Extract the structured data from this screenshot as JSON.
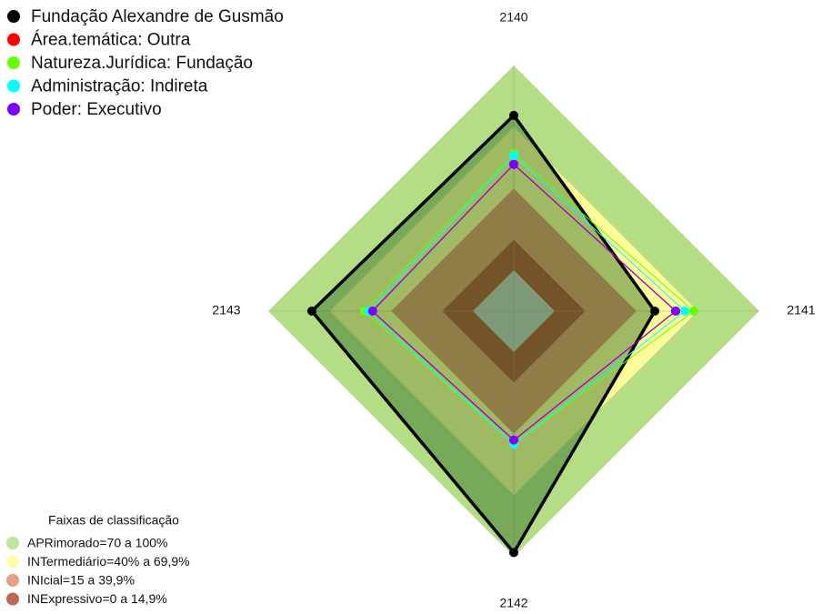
{
  "chart_data": {
    "type": "radar",
    "categories": [
      "2140",
      "2141",
      "2142",
      "2143"
    ],
    "rlim": [
      -20,
      100
    ],
    "center_color": "#c0c0c0",
    "legend_title": "Faixas de classificação",
    "bands": [
      {
        "name": "APRimorado=70 a 100%",
        "color": "#b3de86",
        "from": 70,
        "to": 100
      },
      {
        "name": "INTermediário=40% a 69,9%",
        "color": "#fcfc98",
        "from": 40,
        "to": 69.9
      },
      {
        "name": "INIcial=15 a 39,9%",
        "color": "#e08a66",
        "from": 15,
        "to": 39.9
      },
      {
        "name": "INExpressivo=0 a 14,9%",
        "color": "#b0402e",
        "from": 0,
        "to": 14.9
      }
    ],
    "series": [
      {
        "name": "Fundação Alexandre de Gusmão",
        "color": "#000000",
        "fill": "#2f6a22",
        "values": [
          75.6,
          48.9,
          98,
          78.7
        ]
      },
      {
        "name": "Área.temática: Outra",
        "color": "#ff0000",
        "values": [
          51.8,
          59.2,
          43.2,
          49.2
        ]
      },
      {
        "name": "Natureza.Jurídica: Fundação",
        "color": "#66ff00",
        "values": [
          57,
          68,
          45,
          53
        ]
      },
      {
        "name": "Administração: Indireta",
        "color": "#00ffff",
        "values": [
          56,
          63.6,
          45,
          51
        ]
      },
      {
        "name": "Poder: Executivo",
        "color": "#8000ff",
        "values": [
          51.6,
          59,
          43,
          49
        ]
      }
    ]
  }
}
